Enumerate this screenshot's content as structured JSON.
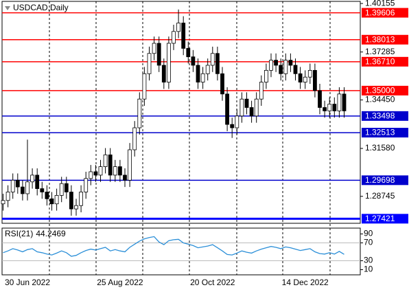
{
  "chart_data": {
    "type": "candlestick",
    "title": "USDCAD,Daily",
    "categories": [
      null,
      null,
      null,
      null,
      null,
      "30 Jun 2022",
      null,
      null,
      null,
      null,
      null,
      null,
      null,
      null,
      null,
      null,
      null,
      null,
      null,
      null,
      null,
      null,
      null,
      null,
      "25 Aug 2022",
      null,
      null,
      null,
      null,
      null,
      null,
      null,
      null,
      null,
      null,
      null,
      null,
      null,
      null,
      null,
      null,
      null,
      null,
      "20 Oct 2022",
      null,
      null,
      null,
      null,
      null,
      null,
      null,
      null,
      null,
      null,
      null,
      null,
      null,
      null,
      null,
      null,
      null,
      null,
      "14 Dec 2022",
      null,
      null,
      null,
      null,
      null,
      null,
      null,
      null
    ],
    "open": [
      1.283,
      1.285,
      1.29,
      1.297,
      1.293,
      1.289,
      1.296,
      1.3,
      1.292,
      1.29,
      1.286,
      1.283,
      1.288,
      1.295,
      1.29,
      1.28,
      1.282,
      1.29,
      1.298,
      1.302,
      1.3,
      1.305,
      1.312,
      1.3,
      1.305,
      1.3,
      1.297,
      1.315,
      1.328,
      1.345,
      1.36,
      1.372,
      1.378,
      1.365,
      1.355,
      1.378,
      1.385,
      1.39,
      1.375,
      1.37,
      1.365,
      1.355,
      1.36,
      1.365,
      1.372,
      1.36,
      1.348,
      1.33,
      1.328,
      1.335,
      1.345,
      1.34,
      1.335,
      1.345,
      1.355,
      1.362,
      1.368,
      1.365,
      1.36,
      1.368,
      1.365,
      1.36,
      1.355,
      1.358,
      1.362,
      1.35,
      1.34,
      1.338,
      1.342,
      1.338,
      1.348
    ],
    "high": [
      1.289,
      1.294,
      1.301,
      1.301,
      1.297,
      1.321,
      1.304,
      1.304,
      1.296,
      1.294,
      1.29,
      1.292,
      1.299,
      1.299,
      1.294,
      1.286,
      1.294,
      1.302,
      1.306,
      1.306,
      1.309,
      1.316,
      1.316,
      1.309,
      1.309,
      1.304,
      1.319,
      1.332,
      1.349,
      1.364,
      1.376,
      1.382,
      1.382,
      1.369,
      1.382,
      1.389,
      1.398,
      1.394,
      1.379,
      1.374,
      1.369,
      1.364,
      1.369,
      1.376,
      1.376,
      1.364,
      1.352,
      1.334,
      1.339,
      1.349,
      1.349,
      1.344,
      1.349,
      1.359,
      1.366,
      1.372,
      1.372,
      1.369,
      1.372,
      1.372,
      1.369,
      1.364,
      1.362,
      1.366,
      1.366,
      1.354,
      1.344,
      1.346,
      1.346,
      1.352,
      1.352
    ],
    "low": [
      1.279,
      1.281,
      1.286,
      1.289,
      1.285,
      1.285,
      1.292,
      1.288,
      1.286,
      1.282,
      1.279,
      1.279,
      1.284,
      1.286,
      1.276,
      1.276,
      1.278,
      1.286,
      1.294,
      1.296,
      1.296,
      1.301,
      1.296,
      1.296,
      1.296,
      1.293,
      1.293,
      1.311,
      1.324,
      1.341,
      1.356,
      1.368,
      1.361,
      1.351,
      1.351,
      1.374,
      1.381,
      1.371,
      1.366,
      1.361,
      1.351,
      1.351,
      1.356,
      1.361,
      1.356,
      1.344,
      1.326,
      1.322,
      1.324,
      1.331,
      1.336,
      1.331,
      1.331,
      1.341,
      1.351,
      1.358,
      1.361,
      1.356,
      1.356,
      1.361,
      1.356,
      1.351,
      1.351,
      1.354,
      1.346,
      1.336,
      1.334,
      1.334,
      1.334,
      1.334,
      1.334
    ],
    "close": [
      1.285,
      1.29,
      1.297,
      1.293,
      1.289,
      1.296,
      1.3,
      1.292,
      1.29,
      1.286,
      1.283,
      1.288,
      1.295,
      1.29,
      1.28,
      1.282,
      1.29,
      1.298,
      1.302,
      1.3,
      1.305,
      1.312,
      1.3,
      1.305,
      1.3,
      1.297,
      1.315,
      1.328,
      1.345,
      1.36,
      1.372,
      1.378,
      1.365,
      1.355,
      1.378,
      1.385,
      1.39,
      1.375,
      1.37,
      1.365,
      1.355,
      1.36,
      1.365,
      1.372,
      1.36,
      1.348,
      1.33,
      1.328,
      1.335,
      1.345,
      1.34,
      1.335,
      1.345,
      1.355,
      1.362,
      1.368,
      1.365,
      1.36,
      1.368,
      1.365,
      1.36,
      1.355,
      1.358,
      1.362,
      1.35,
      1.34,
      1.338,
      1.342,
      1.338,
      1.348,
      1.338
    ],
    "ylim": [
      1.2715,
      1.4028
    ],
    "yticks": [
      1.40155,
      1.37285,
      {
        "value": 1.3445,
        "label": "1.34450"
      },
      {
        "value": 1.3158,
        "label": "1.31580"
      },
      1.28745
    ],
    "levels": [
      {
        "value": 1.39606,
        "color": "#ff0000"
      },
      {
        "value": 1.38013,
        "color": "#ff0000"
      },
      {
        "value": 1.3671,
        "label": "1.36710",
        "color": "#ff0000"
      },
      {
        "value": 1.35,
        "label": "1.35000",
        "color": "#ff0000"
      },
      {
        "value": 1.33498,
        "color": "#0000cc"
      },
      {
        "value": 1.32513,
        "color": "#0000cc"
      },
      {
        "value": 1.29698,
        "color": "#0000cc"
      },
      {
        "value": 1.27421,
        "color": "#0000ff"
      }
    ],
    "rsi": {
      "name": "RSI(21)",
      "color": "#2b8fd8",
      "values": [
        48,
        52,
        57,
        54,
        50,
        55,
        57,
        50,
        48,
        45,
        43,
        47,
        52,
        48,
        40,
        42,
        48,
        53,
        56,
        54,
        57,
        60,
        52,
        55,
        52,
        50,
        60,
        67,
        74,
        79,
        82,
        84,
        72,
        66,
        75,
        77,
        78,
        70,
        67,
        64,
        59,
        61,
        63,
        66,
        59,
        52,
        44,
        43,
        47,
        52,
        49,
        47,
        52,
        56,
        59,
        62,
        60,
        57,
        61,
        59,
        56,
        53,
        55,
        57,
        50,
        46,
        45,
        48,
        45,
        51,
        44.2469
      ],
      "ylim": [
        0,
        100
      ],
      "yticks": [
        90,
        70,
        30,
        10
      ],
      "levels": [
        70,
        30
      ]
    }
  }
}
